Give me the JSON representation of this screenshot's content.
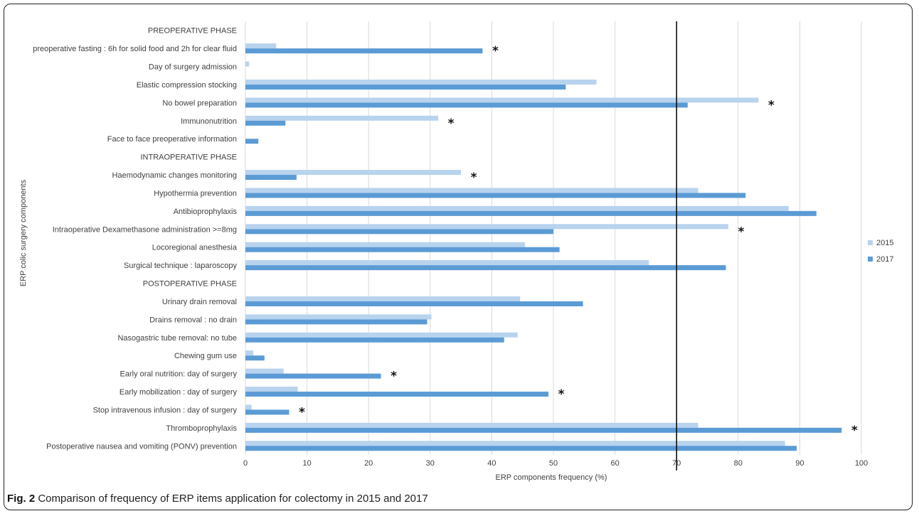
{
  "caption": {
    "label": "Fig. 2",
    "text": " Comparison of frequency of ERP items application for colectomy in 2015 and 2017"
  },
  "chart_data": {
    "type": "bar",
    "orientation": "horizontal",
    "xlabel": "ERP components frequency (%)",
    "ylabel": "ERP colic surgery components",
    "xlim": [
      0,
      100
    ],
    "xticks": [
      0,
      10,
      20,
      30,
      40,
      50,
      60,
      70,
      80,
      90,
      100
    ],
    "reference_line": 70,
    "grid": "vertical",
    "legend_position": "right",
    "series": [
      {
        "name": "2015",
        "color": "#b8d3ee"
      },
      {
        "name": "2017",
        "color": "#5b9bd5"
      }
    ],
    "categories": [
      {
        "label": "PREOPERATIVE PHASE",
        "header": true
      },
      {
        "label": "preoperative fasting : 6h for solid food and 2h for clear fluid",
        "v2015": 5,
        "v2017": 38.5,
        "star": true
      },
      {
        "label": "Day of surgery admission",
        "v2015": 0.6,
        "v2017": 0
      },
      {
        "label": "Elastic compression stocking",
        "v2015": 57,
        "v2017": 52
      },
      {
        "label": "No bowel preparation",
        "v2015": 83.3,
        "v2017": 71.8,
        "star": true
      },
      {
        "label": "Immunonutrition",
        "v2015": 31.3,
        "v2017": 6.5,
        "star": true
      },
      {
        "label": "Face to face preoperative information",
        "v2015": 0,
        "v2017": 2.1
      },
      {
        "label": "INTRAOPERATIVE PHASE",
        "header": true
      },
      {
        "label": "Haemodynamic changes monitoring",
        "v2015": 35,
        "v2017": 8.3,
        "star": true
      },
      {
        "label": "Hypothermia prevention",
        "v2015": 73.5,
        "v2017": 81.2
      },
      {
        "label": "Antibioprophylaxis",
        "v2015": 88.2,
        "v2017": 92.7
      },
      {
        "label": "Intraoperative Dexamethasone administration >=8mg",
        "v2015": 78.4,
        "v2017": 50,
        "star": true
      },
      {
        "label": "Locoregional anesthesia",
        "v2015": 45.4,
        "v2017": 51
      },
      {
        "label": "Surgical technique : laparoscopy",
        "v2015": 65.5,
        "v2017": 78
      },
      {
        "label": "POSTOPERATIVE PHASE",
        "header": true
      },
      {
        "label": "Urinary drain removal",
        "v2015": 44.6,
        "v2017": 54.8
      },
      {
        "label": "Drains removal : no drain",
        "v2015": 30.2,
        "v2017": 29.5
      },
      {
        "label": "Nasogastric tube removal: no tube",
        "v2015": 44.2,
        "v2017": 42
      },
      {
        "label": "Chewing gum use",
        "v2015": 1.3,
        "v2017": 3.1
      },
      {
        "label": "Early oral nutrition: day of surgery",
        "v2015": 6.2,
        "v2017": 22,
        "star": true
      },
      {
        "label": "Early mobilization : day of surgery",
        "v2015": 8.5,
        "v2017": 49.2,
        "star": true
      },
      {
        "label": "Stop intravenous infusion : day of surgery",
        "v2015": 1,
        "v2017": 7.1,
        "star": true
      },
      {
        "label": "Thromboprophylaxis",
        "v2015": 73.5,
        "v2017": 96.8,
        "star": true
      },
      {
        "label": "Postoperative nausea and vomiting (PONV) prevention",
        "v2015": 87.6,
        "v2017": 89.5
      }
    ],
    "star_symbol": "*"
  }
}
